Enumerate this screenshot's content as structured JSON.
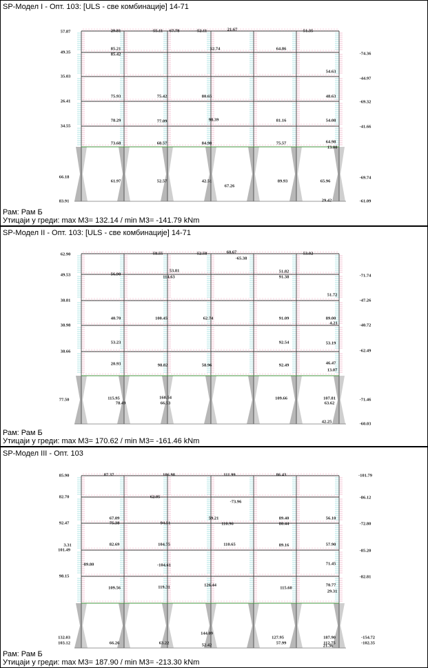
{
  "panels": [
    {
      "title": "SP-Модел I - Опт. 103: [ULS - све комбинације] 14-71",
      "frame": "Рам: Рам Б",
      "summary": "Утицаји у греди: max M3= 132.14 / min M3= -141.79 kNm",
      "labels": [
        "57.87",
        "49.35",
        "35.03",
        "26.41",
        "34.55",
        "66.18",
        "83.91",
        "29.81",
        "-55.11",
        "67.78",
        "-52.11",
        "21.67",
        "-51.35",
        "85.21",
        "85.42",
        "52.74",
        "64.86",
        "-74.36",
        "54.63",
        "-44.97",
        "75.93",
        "75.42",
        "80.65",
        "48.63",
        "-69.32",
        "78.29",
        "77.09",
        "98.39",
        "81.16",
        "54.08",
        "-41.66",
        "73.68",
        "68.57",
        "84.98",
        "75.57",
        "64.98",
        "13.00",
        "61.97",
        "52.57",
        "42.51",
        "67.26",
        "89.93",
        "65.96",
        "-69.74",
        "29.42",
        "-61.09"
      ]
    },
    {
      "title": "SP-Модел II - Опт. 103: [ULS - све комбинације] 14-71",
      "frame": "Рам: Рам Б",
      "summary": "Утицаји у греди: max M3= 170.62 / min M3= -161.46 kNm",
      "labels": [
        "62.90",
        "49.53",
        "38.81",
        "38.98",
        "38.66",
        "77.50",
        "-58.55",
        "-52.58",
        "60.67",
        "-65.38",
        "-53.02",
        "56.90",
        "53.81",
        "114.63",
        "51.82",
        "91.38",
        "-71.74",
        "51.72",
        "-47.26",
        "40.70",
        "100.45",
        "62.74",
        "91.09",
        "89.00",
        "4.21",
        "-40.72",
        "53.23",
        "92.54",
        "53.19",
        "-62.49",
        "20.93",
        "98.82",
        "58.96",
        "92.49",
        "46.47",
        "13.07",
        "115.95",
        "78.49",
        "160.54",
        "66.53",
        "109.66",
        "107.81",
        "63.62",
        "-71.46",
        "42.25",
        "-60.03"
      ]
    },
    {
      "title": "SP-Модел III - Опт. 103",
      "frame": "Рам: Рам Б",
      "summary": "Утицаји у греди: max M3= 187.90 / min M3= -213.30 kNm",
      "labels": [
        "85.90",
        "82.70",
        "92.47",
        "3.31",
        "101.49",
        "98.15",
        "132.03",
        "103.12",
        "87.37",
        "106.98",
        "111.99",
        "86.43",
        "-101.79",
        "62.05",
        "-73.96",
        "-86.12",
        "67.09",
        "75.38",
        "94.51",
        "59.21",
        "110.96",
        "89.40",
        "80.44",
        "56.10",
        "-72.80",
        "82.69",
        "104.75",
        "110.65",
        "89.16",
        "57.90",
        "-85.20",
        "-89.80",
        "-104.61",
        "71.45",
        "-82.81",
        "109.56",
        "119.31",
        "126.44",
        "115.60",
        "70.77",
        "29.31",
        "66.26",
        "63.22",
        "144.09",
        "52.42",
        "127.95",
        "57.99",
        "187.90",
        "112.75",
        "-154.72",
        "-102.35",
        "21.36"
      ]
    }
  ]
}
